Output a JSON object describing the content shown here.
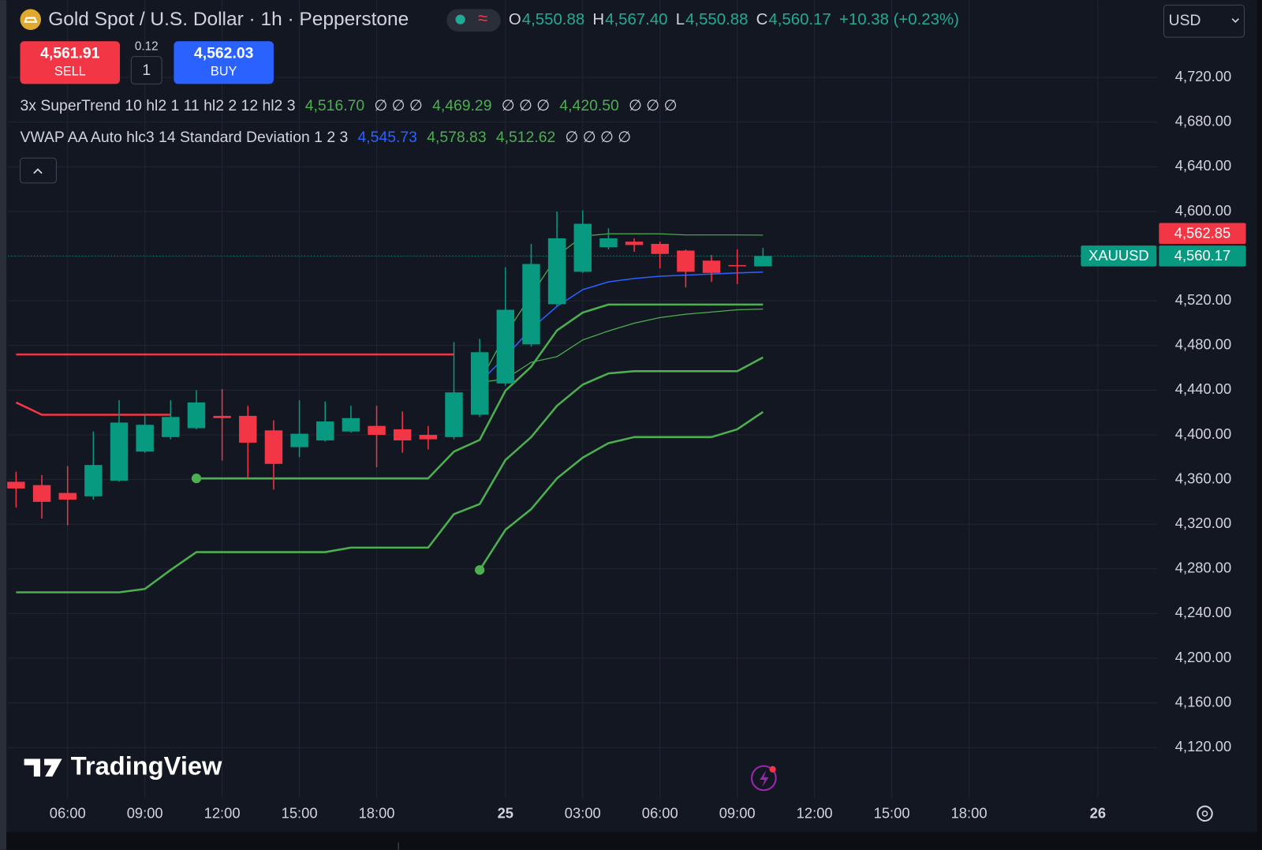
{
  "header": {
    "symbol": "Gold Spot / U.S. Dollar · 1h · Pepperstone",
    "status_icon": "≈",
    "ohlc": [
      {
        "key": "O",
        "value": "4,550.88"
      },
      {
        "key": "H",
        "value": "4,567.40"
      },
      {
        "key": "L",
        "value": "4,550.88"
      },
      {
        "key": "C",
        "value": "4,560.17"
      }
    ],
    "change": "+10.38 (+0.23%)",
    "currency": "USD"
  },
  "trade": {
    "sell_price": "4,561.91",
    "sell_label": "SELL",
    "spread": "0.12",
    "quantity": "1",
    "buy_price": "4,562.03",
    "buy_label": "BUY"
  },
  "indicators": [
    {
      "title": "3x SuperTrend 10 hl2 1 11 hl2 2 12 hl2 3",
      "items": [
        {
          "text": "4,516.70",
          "color": "#4caf50"
        },
        {
          "text": "∅ ∅ ∅",
          "color": "#d1d4dc"
        },
        {
          "text": "4,469.29",
          "color": "#4caf50"
        },
        {
          "text": "∅ ∅ ∅",
          "color": "#d1d4dc"
        },
        {
          "text": "4,420.50",
          "color": "#4caf50"
        },
        {
          "text": "∅ ∅ ∅",
          "color": "#d1d4dc"
        }
      ]
    },
    {
      "title": "VWAP AA Auto hlc3 14 Standard Deviation 1 2 3",
      "items": [
        {
          "text": "4,545.73",
          "color": "#2962ff"
        },
        {
          "text": "4,578.83",
          "color": "#4caf50"
        },
        {
          "text": "4,512.62",
          "color": "#4caf50"
        },
        {
          "text": "∅ ∅ ∅ ∅",
          "color": "#d1d4dc"
        }
      ]
    }
  ],
  "watermark": "TradingView",
  "chart_data": {
    "type": "candlestick",
    "categories": [
      null,
      null,
      "06:00",
      null,
      null,
      "09:00",
      null,
      null,
      "12:00",
      null,
      null,
      "15:00",
      null,
      null,
      "18:00",
      null,
      null,
      null,
      null,
      "25",
      null,
      null,
      "03:00",
      null,
      null,
      "06:00",
      null,
      null,
      "09:00",
      null,
      null,
      "12:00",
      null,
      null,
      "15:00",
      null,
      null,
      "18:00",
      null,
      null,
      null,
      null,
      "26",
      null
    ],
    "open": [
      4358,
      4355,
      4348,
      4345,
      4359,
      4385,
      4398,
      4406,
      4417,
      4417,
      4404,
      4389,
      4395,
      4403,
      4408,
      4405,
      4400,
      4398,
      4418,
      4446,
      4481,
      4517,
      4546,
      4568,
      4573,
      4571,
      4565,
      4556,
      4552,
      4550.88,
      null,
      null,
      null,
      null,
      null,
      null,
      null,
      null,
      null,
      null,
      null,
      null,
      null,
      null
    ],
    "high": [
      4367,
      4364,
      4372,
      4403,
      4431,
      4418,
      4431,
      4440,
      4441,
      4426,
      4413,
      4431,
      4430,
      4426,
      4426,
      4421,
      4408,
      4483,
      4486,
      4550,
      4571,
      4600,
      4601,
      4585,
      4576,
      4573,
      4566,
      4561,
      4566,
      4567.4,
      null,
      null,
      null,
      null,
      null,
      null,
      null,
      null,
      null,
      null,
      null,
      null,
      null,
      null
    ],
    "low": [
      4335,
      4325,
      4319,
      4342,
      4358,
      4384,
      4396,
      4405,
      4377,
      4362,
      4351,
      4380,
      4394,
      4402,
      4371,
      4384,
      4387,
      4396,
      4416,
      4444,
      4479,
      4515,
      4545,
      4566,
      4564,
      4549,
      4532,
      4537,
      4535,
      4550.88,
      null,
      null,
      null,
      null,
      null,
      null,
      null,
      null,
      null,
      null,
      null,
      null,
      null,
      null
    ],
    "close": [
      4352,
      4340,
      4342,
      4373,
      4411,
      4409,
      4416,
      4429,
      4415,
      4393,
      4374,
      4401,
      4412,
      4415,
      4400,
      4395,
      4396,
      4438,
      4474,
      4512,
      4553,
      4576,
      4589,
      4576,
      4570,
      4562,
      4546,
      4545,
      4550.88,
      4560.17,
      null,
      null,
      null,
      null,
      null,
      null,
      null,
      null,
      null,
      null,
      null,
      null,
      null,
      null
    ],
    "up_color": "#089981",
    "down_color": "#f23645",
    "ylim": [
      4080,
      4760
    ],
    "yticks": [
      {
        "value": 4120,
        "label": "4,120.00"
      },
      {
        "value": 4160,
        "label": "4,160.00"
      },
      {
        "value": 4200,
        "label": "4,200.00"
      },
      {
        "value": 4240,
        "label": "4,240.00"
      },
      {
        "value": 4280,
        "label": "4,280.00"
      },
      {
        "value": 4320,
        "label": "4,320.00"
      },
      {
        "value": 4360,
        "label": "4,360.00"
      },
      {
        "value": 4400,
        "label": "4,400.00"
      },
      {
        "value": 4440,
        "label": "4,440.00"
      },
      {
        "value": 4480,
        "label": "4,480.00"
      },
      {
        "value": 4520,
        "label": "4,520.00"
      },
      {
        "value": 4560,
        "label": "4,560.00"
      },
      {
        "value": 4600,
        "label": "4,600.00"
      },
      {
        "value": 4640,
        "label": "4,640.00"
      },
      {
        "value": 4680,
        "label": "4,680.00"
      },
      {
        "value": 4720,
        "label": "4,720.00"
      }
    ],
    "grid": true,
    "overlays": [
      {
        "color": "#f23645",
        "width": 2.5,
        "values": [
          4429,
          4418,
          4418,
          4418,
          4418,
          4418,
          4418,
          null,
          null,
          null,
          null,
          null,
          null,
          null,
          null,
          null,
          null,
          null,
          null,
          null,
          null,
          null,
          null,
          null,
          null,
          null,
          null,
          null,
          null,
          null,
          null,
          null,
          null,
          null,
          null,
          null,
          null,
          null,
          null,
          null,
          null,
          null,
          null,
          null
        ]
      },
      {
        "color": "#4caf50",
        "width": 2.5,
        "start_dot": true,
        "values": [
          null,
          null,
          null,
          null,
          null,
          null,
          null,
          4361,
          4361,
          4361,
          4361,
          4361,
          4361,
          4361,
          4361,
          4361,
          4361,
          4385,
          4395.5,
          4439.5,
          4461,
          4493.5,
          4509.5,
          4516.7,
          4516.7,
          4516.7,
          4516.7,
          4516.7,
          4516.7,
          4516.7,
          null,
          null,
          null,
          null,
          null,
          null,
          null,
          null,
          null,
          null,
          null,
          null,
          null,
          null
        ]
      },
      {
        "color": "#4caf50",
        "width": 2.5,
        "values": [
          4259,
          4259,
          4259,
          4259,
          4259,
          4262,
          4279,
          4295,
          4295,
          4295,
          4295,
          4295,
          4295,
          4299,
          4299,
          4299,
          4299,
          4329,
          4338,
          4377.5,
          4398,
          4426,
          4445,
          4455,
          4457,
          4457,
          4457,
          4457,
          4457,
          4469.29,
          null,
          null,
          null,
          null,
          null,
          null,
          null,
          null,
          null,
          null,
          null,
          null,
          null,
          null
        ]
      },
      {
        "color": "#f23645",
        "width": 2.5,
        "values": [
          4472,
          4472,
          4472,
          4472,
          4472,
          4472,
          4472,
          4472,
          4472,
          4472,
          4472,
          4472,
          4472,
          4472,
          4472,
          4472,
          4472,
          4472,
          null,
          null,
          null,
          null,
          null,
          null,
          null,
          null,
          null,
          null,
          null,
          null,
          null,
          null,
          null,
          null,
          null,
          null,
          null,
          null,
          null,
          null,
          null,
          null,
          null,
          null
        ]
      },
      {
        "color": "#4caf50",
        "width": 2.5,
        "start_dot": true,
        "values": [
          null,
          null,
          null,
          null,
          null,
          null,
          null,
          null,
          null,
          null,
          null,
          null,
          null,
          null,
          null,
          null,
          null,
          null,
          4279,
          4315,
          4333.5,
          4361,
          4379.6,
          4392.6,
          4398,
          4398,
          4398,
          4398,
          4405,
          4420.5,
          null,
          null,
          null,
          null,
          null,
          null,
          null,
          null,
          null,
          null,
          null,
          null,
          null,
          null
        ]
      },
      {
        "color": "#2962ff",
        "width": 1.5,
        "values": [
          null,
          null,
          null,
          null,
          null,
          null,
          null,
          null,
          null,
          null,
          null,
          null,
          null,
          null,
          null,
          null,
          null,
          null,
          4447,
          4470,
          4495,
          4515,
          4530,
          4537,
          4540,
          4542,
          4543,
          4544,
          4545,
          4545.73,
          null,
          null,
          null,
          null,
          null,
          null,
          null,
          null,
          null,
          null,
          null,
          null,
          null,
          null
        ]
      },
      {
        "color": "#4caf50",
        "width": 1.2,
        "values": [
          null,
          null,
          null,
          null,
          null,
          null,
          null,
          null,
          null,
          null,
          null,
          null,
          null,
          null,
          null,
          null,
          null,
          null,
          4447,
          4490,
          4525,
          4560,
          4578,
          4580,
          4580,
          4580,
          4579,
          4579,
          4579,
          4578.83,
          null,
          null,
          null,
          null,
          null,
          null,
          null,
          null,
          null,
          null,
          null,
          null,
          null,
          null
        ]
      },
      {
        "color": "#4caf50",
        "width": 1.2,
        "values": [
          null,
          null,
          null,
          null,
          null,
          null,
          null,
          null,
          null,
          null,
          null,
          null,
          null,
          null,
          null,
          null,
          null,
          null,
          4447,
          4450,
          4465,
          4470,
          4485,
          4493,
          4500,
          4505,
          4508,
          4510,
          4512,
          4512.62,
          null,
          null,
          null,
          null,
          null,
          null,
          null,
          null,
          null,
          null,
          null,
          null,
          null,
          null
        ]
      }
    ],
    "price_markers": [
      {
        "label": "4,562.85",
        "value": 4562.85,
        "color": "#f23645"
      },
      {
        "symbol": "XAUUSD",
        "label": "4,560.17",
        "value": 4560.17,
        "color": "#089981",
        "line": true
      }
    ]
  }
}
